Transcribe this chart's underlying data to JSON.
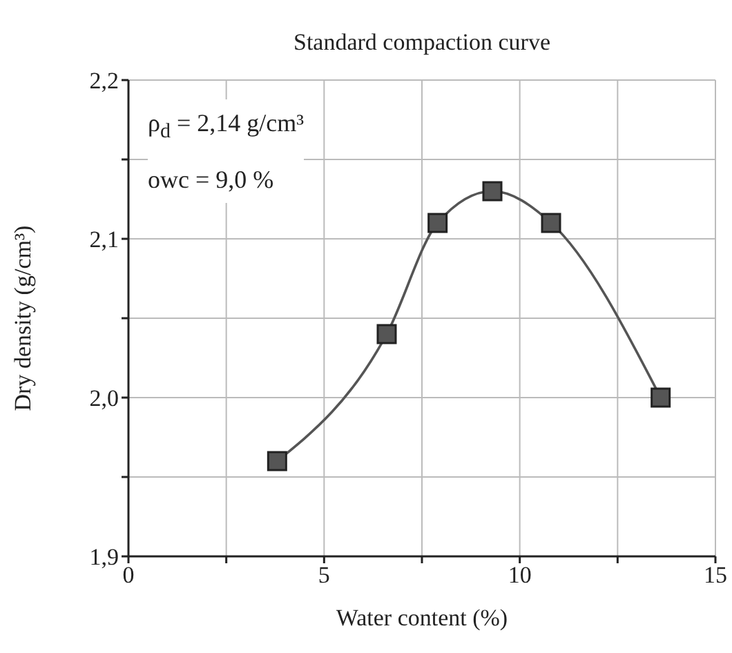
{
  "chart_data": {
    "type": "line",
    "title": "Standard compaction curve",
    "xlabel": "Water content (%)",
    "ylabel": "Dry density (g/cm³)",
    "annotations": [
      "ρ$_{d}$ = 2,14 g/cm³",
      "owc = 9,0 %"
    ],
    "x": [
      3.8,
      6.6,
      7.9,
      9.3,
      10.8,
      13.6
    ],
    "series": [
      {
        "color": "#555555",
        "values": [
          1.96,
          2.04,
          2.11,
          2.13,
          2.11,
          2.0
        ]
      }
    ],
    "xlim": [
      0,
      15
    ],
    "xticks": [
      0,
      {
        "value": 2.5,
        "label": null
      },
      5,
      {
        "value": 7.5,
        "label": null
      },
      10,
      {
        "value": 12.5,
        "label": null
      },
      15
    ],
    "ylim": [
      1.9,
      2.2
    ],
    "yticks": [
      {
        "value": 1.9,
        "label": "1,9"
      },
      {
        "value": 1.95,
        "label": null
      },
      {
        "value": 2.0,
        "label": "2,0"
      },
      {
        "value": 2.05,
        "label": null
      },
      {
        "value": 2.1,
        "label": "2,1"
      },
      {
        "value": 2.15,
        "label": null
      },
      {
        "value": 2.2,
        "label": "2,2"
      }
    ],
    "grid": true,
    "marker": "square",
    "line_style": "solid"
  }
}
